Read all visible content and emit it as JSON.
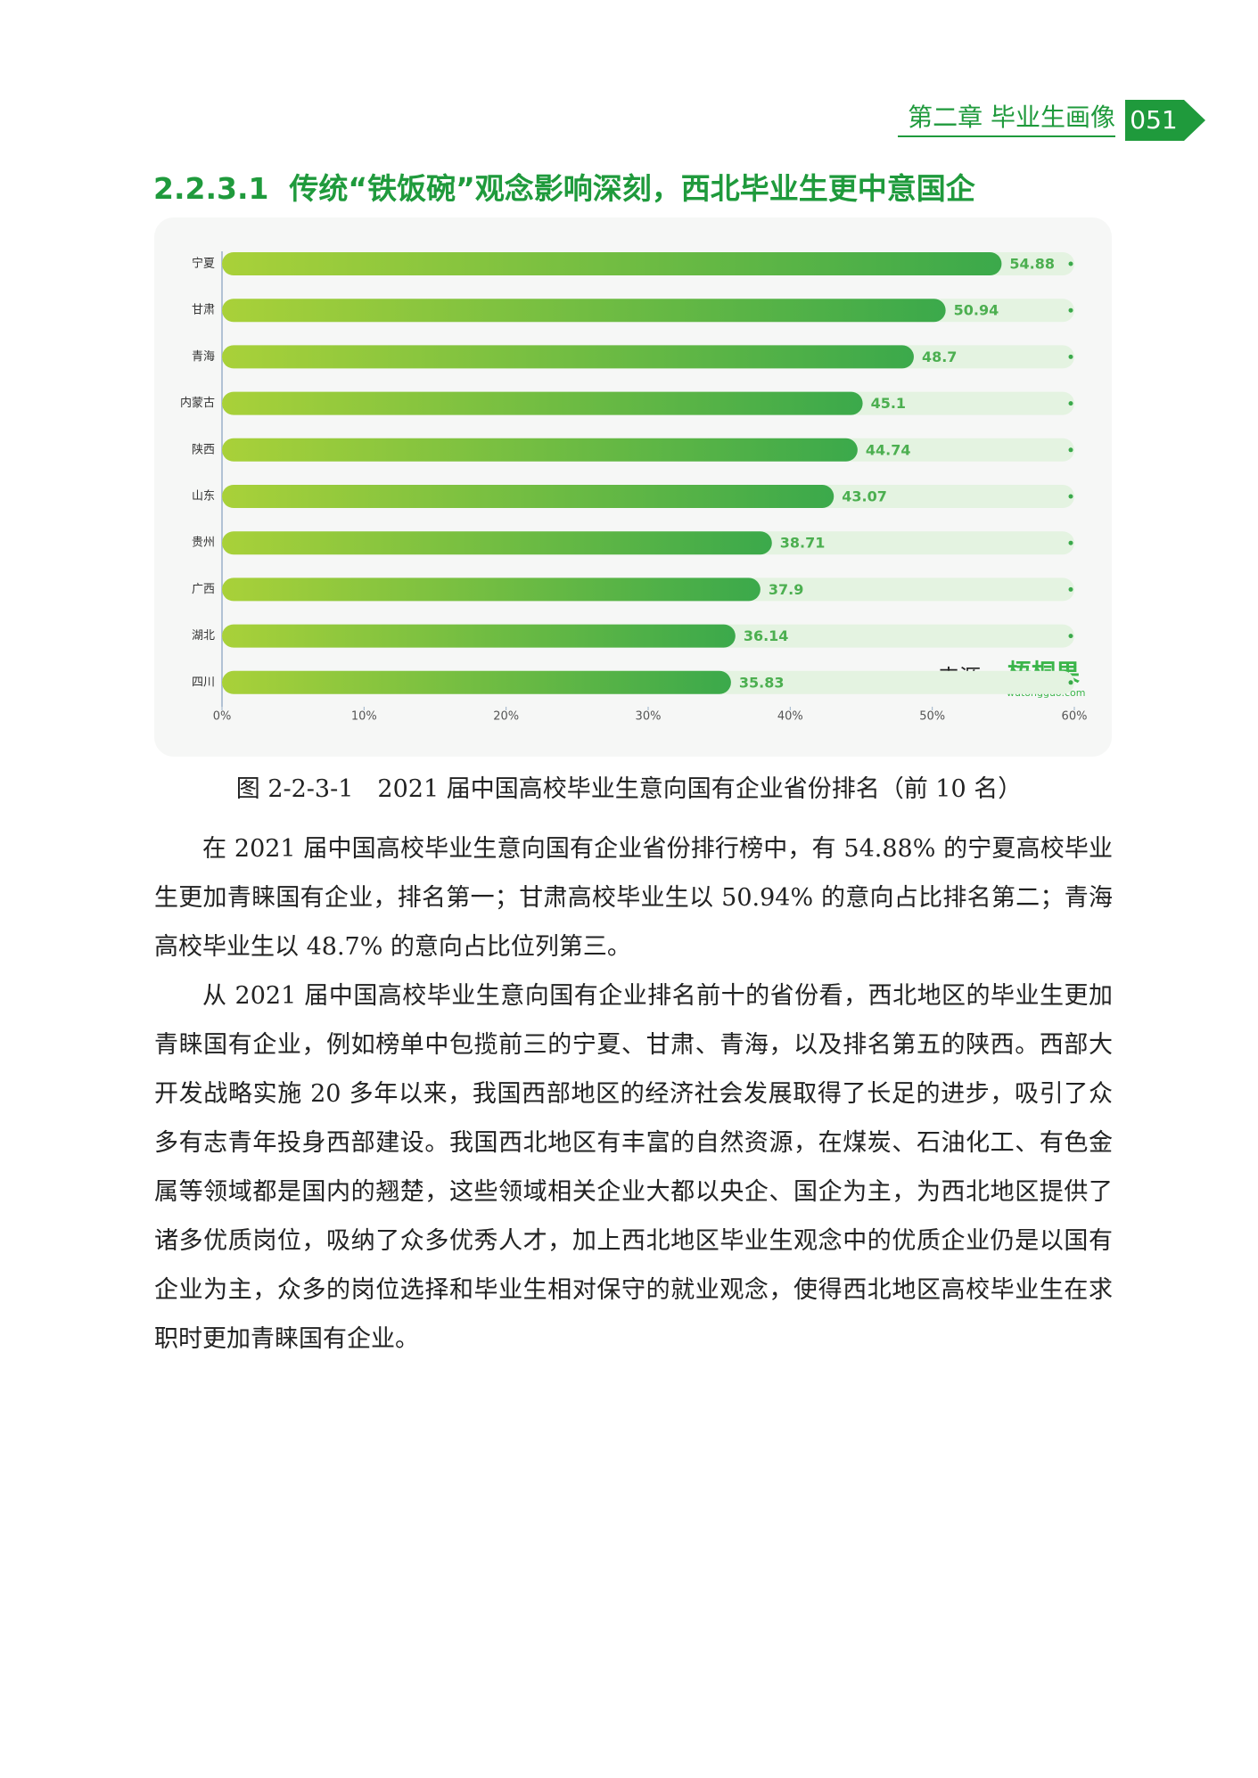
{
  "header": {
    "chapter": "第二章 毕业生画像",
    "page": "051"
  },
  "section_title": "2.2.3.1  传统“铁饭碗”观念影响深刻，西北毕业生更中意国企",
  "chart_data": {
    "type": "bar",
    "orientation": "horizontal",
    "categories": [
      "宁夏",
      "甘肃",
      "青海",
      "内蒙古",
      "陕西",
      "山东",
      "贵州",
      "广西",
      "湖北",
      "四川"
    ],
    "values": [
      54.88,
      50.94,
      48.7,
      45.1,
      44.74,
      43.07,
      38.71,
      37.9,
      36.14,
      35.83
    ],
    "color": "#3ba94b",
    "xlim": [
      0,
      60
    ],
    "xticks": [
      {
        "value": 0,
        "label": "0%"
      },
      {
        "value": 10,
        "label": "10%"
      },
      {
        "value": 20,
        "label": "20%"
      },
      {
        "value": 30,
        "label": "30%"
      },
      {
        "value": 40,
        "label": "40%"
      },
      {
        "value": 50,
        "label": "50%"
      },
      {
        "value": 60,
        "label": "60%"
      }
    ],
    "source_label": "来源:",
    "source_logo": "梧桐果",
    "source_url": "wutongguo.com"
  },
  "caption": "图 2-2-3-1　2021 届中国高校毕业生意向国有企业省份排名（前 10 名）",
  "paragraphs": [
    "在 2021 届中国高校毕业生意向国有企业省份排行榜中，有 54.88% 的宁夏高校毕业生更加青睐国有企业，排名第一；甘肃高校毕业生以 50.94% 的意向占比排名第二；青海高校毕业生以 48.7% 的意向占比位列第三。",
    "从 2021 届中国高校毕业生意向国有企业排名前十的省份看，西北地区的毕业生更加青睐国有企业，例如榜单中包揽前三的宁夏、甘肃、青海，以及排名第五的陕西。西部大开发战略实施 20 多年以来，我国西部地区的经济社会发展取得了长足的进步，吸引了众多有志青年投身西部建设。我国西北地区有丰富的自然资源，在煤炭、石油化工、有色金属等领域都是国内的翘楚，这些领域相关企业大都以央企、国企为主，为西北地区提供了诸多优质岗位，吸纳了众多优秀人才，加上西北地区毕业生观念中的优质企业仍是以国有企业为主，众多的岗位选择和毕业生相对保守的就业观念，使得西北地区高校毕业生在求职时更加青睐国有企业。"
  ]
}
